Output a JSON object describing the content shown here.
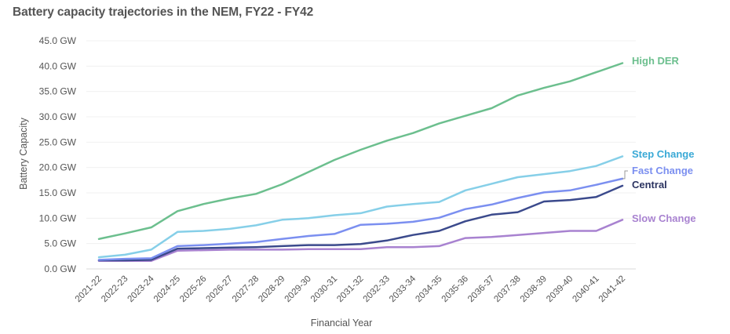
{
  "chart_data": {
    "type": "line",
    "title": "Battery capacity trajectories in the NEM, FY22 - FY42",
    "xlabel": "Financial Year",
    "ylabel": "Battery Capacity",
    "ylim": [
      0,
      45
    ],
    "y_ticks": [
      "0.0 GW",
      "5.0 GW",
      "10.0 GW",
      "15.0 GW",
      "20.0 GW",
      "25.0 GW",
      "30.0 GW",
      "35.0 GW",
      "40.0 GW",
      "45.0 GW"
    ],
    "grid": true,
    "legend_position": "inline-right",
    "categories": [
      "2021-22",
      "2022-23",
      "2023-24",
      "2024-25",
      "2025-26",
      "2026-27",
      "2027-28",
      "2028-29",
      "2029-30",
      "2030-31",
      "2031-32",
      "2032-33",
      "2033-34",
      "2034-35",
      "2035-36",
      "2036-37",
      "2037-38",
      "2038-39",
      "2039-40",
      "2040-41",
      "2041-42"
    ],
    "series": [
      {
        "name": "High DER",
        "color": "#6cbf8e",
        "label_color": "#6cbf8e",
        "values": [
          5.9,
          7.0,
          8.2,
          11.4,
          12.8,
          13.9,
          14.8,
          16.7,
          19.1,
          21.5,
          23.5,
          25.3,
          26.8,
          28.7,
          30.2,
          31.7,
          34.2,
          35.7,
          37.0,
          38.8,
          40.6
        ]
      },
      {
        "name": "Step Change",
        "color": "#86cfe8",
        "label_color": "#3aa9d6",
        "values": [
          2.3,
          2.8,
          3.8,
          7.3,
          7.5,
          7.9,
          8.6,
          9.7,
          10.0,
          10.6,
          11.0,
          12.3,
          12.8,
          13.2,
          15.5,
          16.8,
          18.1,
          18.7,
          19.3,
          20.3,
          22.2
        ]
      },
      {
        "name": "Fast Change",
        "color": "#7b8ff0",
        "label_color": "#7b8ff0",
        "values": [
          1.8,
          2.0,
          2.1,
          4.5,
          4.7,
          5.0,
          5.3,
          5.9,
          6.5,
          6.9,
          8.7,
          8.9,
          9.3,
          10.1,
          11.8,
          12.7,
          14.0,
          15.1,
          15.5,
          16.6,
          17.8
        ]
      },
      {
        "name": "Central",
        "color": "#3b4a8c",
        "label_color": "#2b3360",
        "values": [
          1.7,
          1.7,
          1.8,
          4.0,
          4.1,
          4.2,
          4.3,
          4.5,
          4.7,
          4.7,
          4.9,
          5.6,
          6.7,
          7.5,
          9.4,
          10.7,
          11.2,
          13.3,
          13.6,
          14.2,
          16.4
        ]
      },
      {
        "name": "Slow Change",
        "color": "#a882d0",
        "label_color": "#a882d0",
        "values": [
          1.6,
          1.6,
          1.6,
          3.6,
          3.7,
          3.8,
          3.8,
          3.8,
          3.9,
          3.9,
          3.9,
          4.3,
          4.3,
          4.5,
          6.1,
          6.3,
          6.7,
          7.1,
          7.5,
          7.5,
          9.7
        ]
      }
    ]
  }
}
